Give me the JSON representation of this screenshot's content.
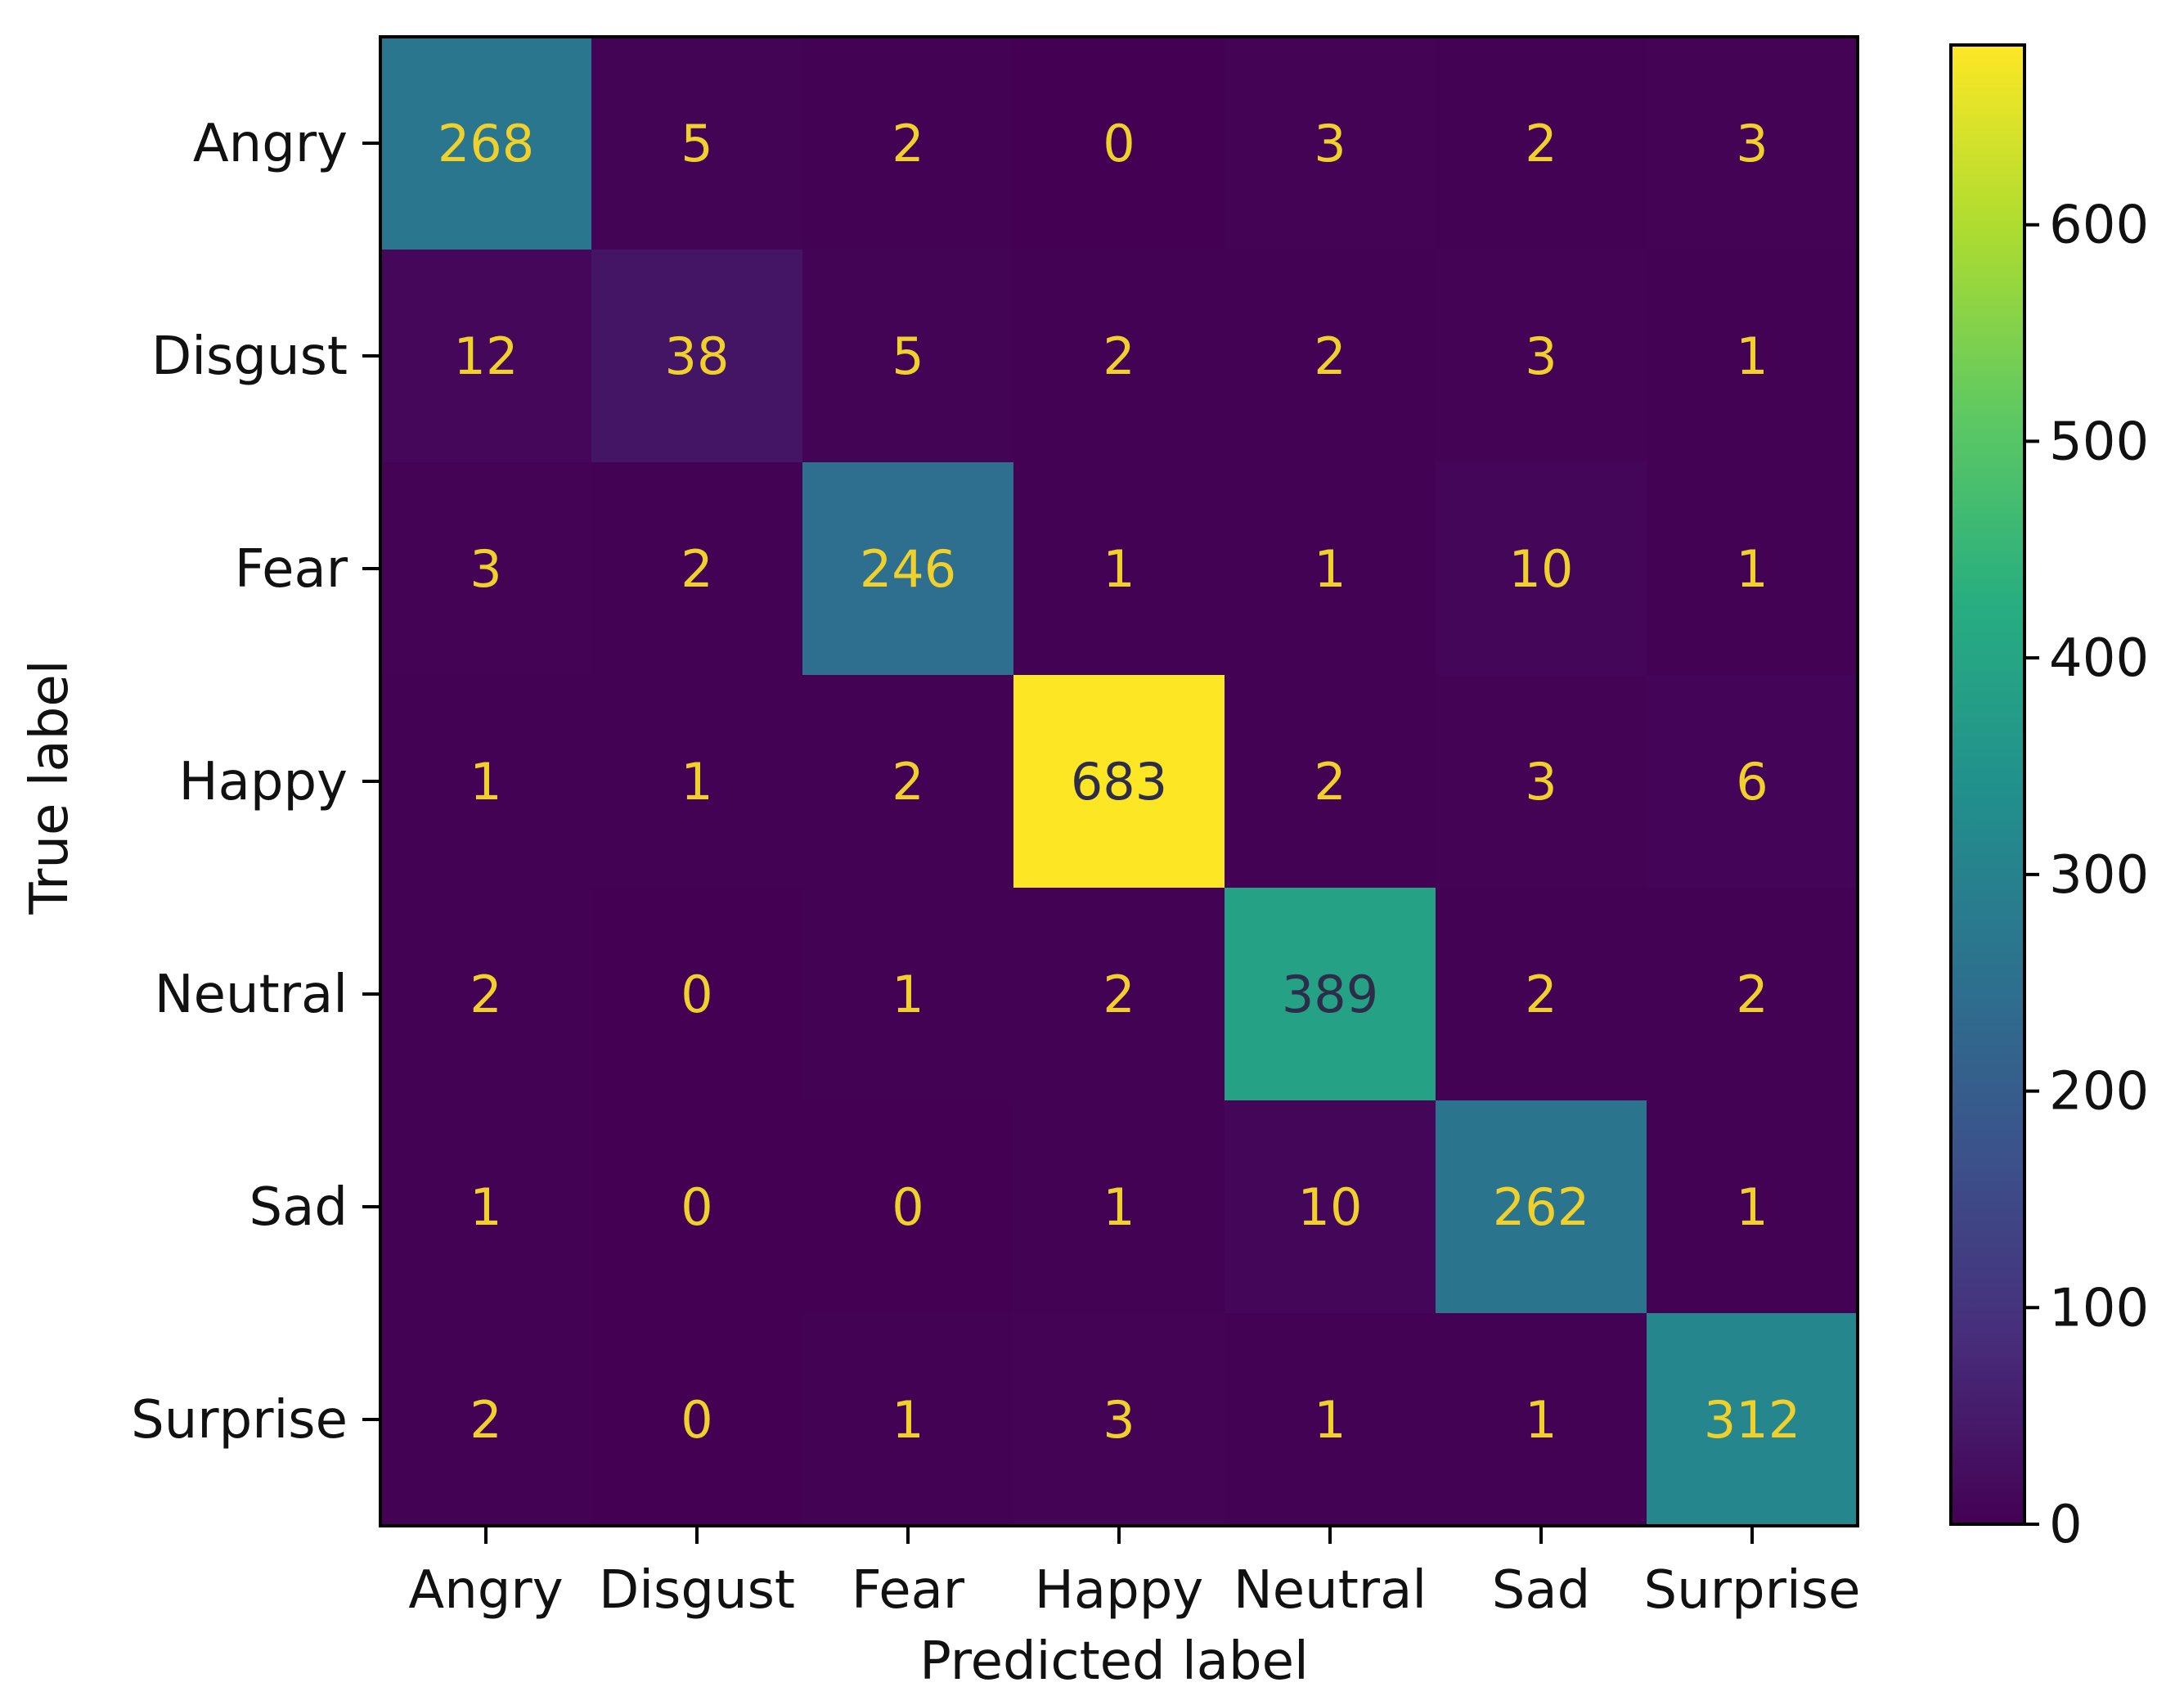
{
  "chart_data": {
    "type": "heatmap",
    "title": "",
    "xlabel": "Predicted label",
    "ylabel": "True label",
    "x_categories": [
      "Angry",
      "Disgust",
      "Fear",
      "Happy",
      "Neutral",
      "Sad",
      "Surprise"
    ],
    "y_categories": [
      "Angry",
      "Disgust",
      "Fear",
      "Happy",
      "Neutral",
      "Sad",
      "Surprise"
    ],
    "matrix": [
      [
        268,
        5,
        2,
        0,
        3,
        2,
        3
      ],
      [
        12,
        38,
        5,
        2,
        2,
        3,
        1
      ],
      [
        3,
        2,
        246,
        1,
        1,
        10,
        1
      ],
      [
        1,
        1,
        2,
        683,
        2,
        3,
        6
      ],
      [
        2,
        0,
        1,
        2,
        389,
        2,
        2
      ],
      [
        1,
        0,
        0,
        1,
        10,
        262,
        1
      ],
      [
        2,
        0,
        1,
        3,
        1,
        1,
        312
      ]
    ],
    "colormap": "viridis",
    "colorbar": {
      "min": 0,
      "max": 683,
      "ticks": [
        0,
        100,
        200,
        300,
        400,
        500,
        600
      ]
    },
    "text_color": "#f0d02a",
    "grid": false,
    "legend": "colorbar-right"
  }
}
